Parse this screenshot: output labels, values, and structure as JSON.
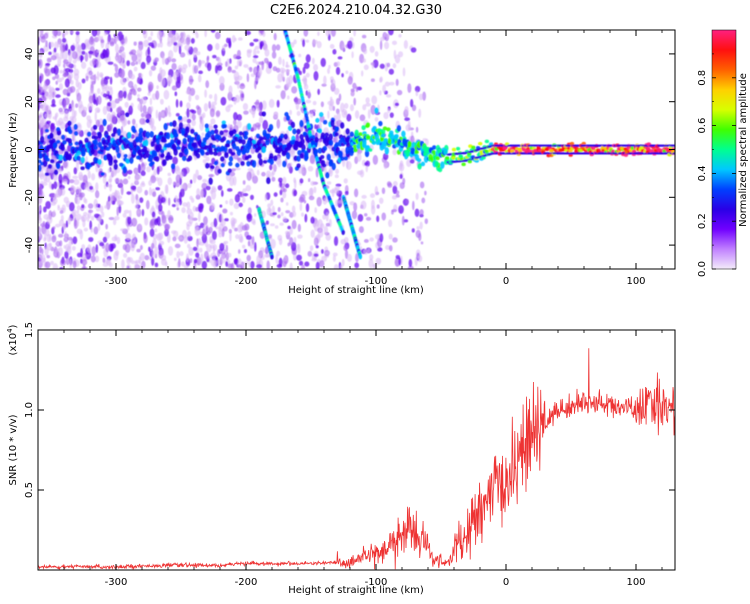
{
  "title": "C2E6.2024.210.04.32.G30",
  "colorbar": {
    "label": "Normalized spectral amplitude",
    "ticks": [
      "0.0",
      "0.2",
      "0.4",
      "0.6",
      "0.8"
    ],
    "tick_values": [
      0.0,
      0.2,
      0.4,
      0.6,
      0.8
    ],
    "range": [
      0,
      1
    ],
    "colors": [
      "#f4ecfa",
      "#c080ff",
      "#7000ff",
      "#2a00e6",
      "#0040ff",
      "#00c8ff",
      "#00ff90",
      "#40ff00",
      "#d8ff00",
      "#ffd000",
      "#ff6000",
      "#ff1010",
      "#ff2080"
    ]
  },
  "chart_data": [
    {
      "type": "heatmap",
      "title": "C2E6.2024.210.04.32.G30",
      "xlabel": "Height of straight line (km)",
      "ylabel": "Frequency (Hz)",
      "xlim": [
        -360,
        130
      ],
      "ylim": [
        -50,
        50
      ],
      "xticks": [
        -300,
        -200,
        -100,
        0,
        100
      ],
      "xtick_labels": [
        "-300",
        "-200",
        "-100",
        "0",
        "100"
      ],
      "yticks": [
        -40,
        -20,
        0,
        20,
        40
      ],
      "ytick_labels": [
        "-40",
        "-20",
        "0",
        "20",
        "40"
      ],
      "ridge": {
        "description_points_x": [
          -360,
          -120,
          -100,
          -80,
          -60,
          -50,
          -30,
          -10,
          0,
          50,
          100,
          130
        ],
        "description_points_y": [
          0,
          3,
          5,
          2,
          -2,
          -4,
          -3,
          0,
          0,
          0,
          0,
          0
        ]
      },
      "diagonal_tracks": [
        {
          "x": [
            -170,
            -160,
            -150,
            -140,
            -125
          ],
          "y": [
            50,
            30,
            5,
            -15,
            -35
          ]
        },
        {
          "x": [
            -125,
            -112
          ],
          "y": [
            -20,
            -45
          ]
        },
        {
          "x": [
            -190,
            -180
          ],
          "y": [
            -25,
            -45
          ]
        }
      ]
    },
    {
      "type": "line",
      "xlabel": "Height of straight line (km)",
      "ylabel": "SNR (10 * v/v)",
      "multiplier_label": "(x10",
      "multiplier_exp": "4",
      "multiplier_close": ")",
      "xlim": [
        -360,
        130
      ],
      "ylim": [
        0,
        1.5
      ],
      "xticks": [
        -300,
        -200,
        -100,
        0,
        100
      ],
      "xtick_labels": [
        "-300",
        "-200",
        "-100",
        "0",
        "100"
      ],
      "yticks": [
        0.5,
        1.0,
        1.5
      ],
      "ytick_labels": [
        "0.5",
        "1.0",
        "1.5"
      ],
      "color": "#ee3333",
      "series": [
        {
          "x": [
            -360,
            -300,
            -260,
            -220,
            -200,
            -150,
            -120,
            -110,
            -95,
            -85,
            -75,
            -65,
            -55,
            -45,
            -35,
            -25,
            -15,
            -10,
            -5,
            0,
            5,
            10,
            15,
            25,
            30,
            40,
            50,
            60,
            70,
            80,
            90,
            100,
            110,
            120,
            130
          ],
          "y": [
            0.02,
            0.02,
            0.03,
            0.03,
            0.04,
            0.04,
            0.05,
            0.08,
            0.12,
            0.18,
            0.25,
            0.2,
            0.06,
            0.05,
            0.15,
            0.3,
            0.42,
            0.52,
            0.5,
            0.55,
            0.62,
            0.72,
            0.78,
            0.85,
            0.92,
            1.0,
            1.02,
            1.05,
            1.05,
            1.03,
            1.02,
            1.0,
            1.02,
            1.04,
            1.0
          ]
        }
      ]
    }
  ]
}
